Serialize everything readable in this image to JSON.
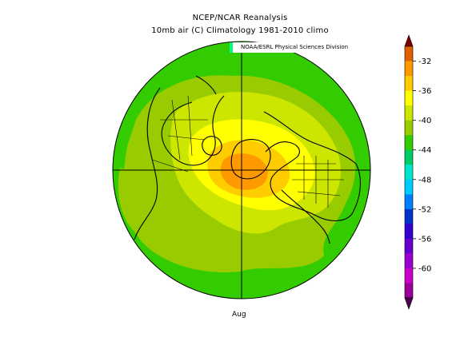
{
  "title": {
    "line1": "NCEP/NCAR Reanalysis",
    "line2": "10mb air (C) Climatology 1981-2010 climo"
  },
  "credit": "NOAA/ESRL Physical Sciences Division",
  "month": "Aug",
  "colorbar": {
    "labels": [
      "-32",
      "-36",
      "-40",
      "-44",
      "-48",
      "-52",
      "-56",
      "-60"
    ],
    "colors": [
      "#7f0000",
      "#e06000",
      "#ff9900",
      "#ffcc00",
      "#ffff00",
      "#cce600",
      "#99cc00",
      "#33cc00",
      "#00cc66",
      "#00e6cc",
      "#00ccff",
      "#0080ff",
      "#0033cc",
      "#3300cc",
      "#6600cc",
      "#9900cc",
      "#cc00cc",
      "#990099",
      "#4d004d"
    ]
  },
  "map": {
    "projection": "north-polar-stereographic",
    "fill_colors": {
      "outer": "#33cc00",
      "ring": "#99cc00",
      "mid": "#cce600",
      "inner": "#ffff00",
      "core": "#ffcc00",
      "center": "#ff9900"
    }
  }
}
